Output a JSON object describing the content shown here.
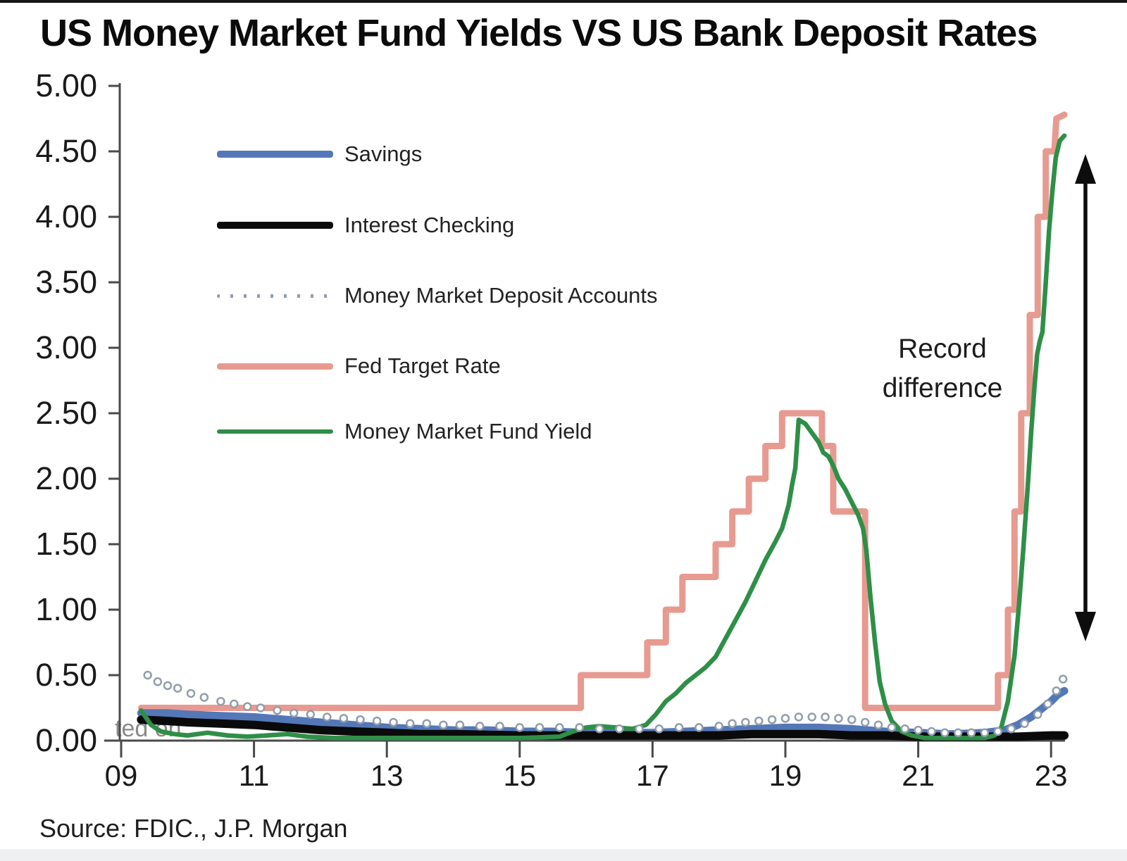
{
  "chart_data": {
    "type": "line",
    "title": "US Money Market Fund Yields VS US Bank Deposit Rates",
    "source": "Source: FDIC., J.P. Morgan",
    "watermark": "ted on",
    "annotation": {
      "line1": "Record",
      "line2": "difference"
    },
    "legend_position": "upper-left",
    "grid": false,
    "ylim": [
      0,
      5
    ],
    "xlim": [
      2009,
      2023.3
    ],
    "y_axis": {
      "ticks": [
        {
          "v": 5.0,
          "label": "5.00"
        },
        {
          "v": 4.5,
          "label": "4.50"
        },
        {
          "v": 4.0,
          "label": "4.00"
        },
        {
          "v": 3.5,
          "label": "3.50"
        },
        {
          "v": 3.0,
          "label": "3.00"
        },
        {
          "v": 2.5,
          "label": "2.50"
        },
        {
          "v": 2.0,
          "label": "2.00"
        },
        {
          "v": 1.5,
          "label": "1.50"
        },
        {
          "v": 1.0,
          "label": "1.00"
        },
        {
          "v": 0.5,
          "label": "0.50"
        },
        {
          "v": 0.0,
          "label": "0.00"
        }
      ]
    },
    "x_axis": {
      "ticks": [
        {
          "year": 2009,
          "label": "09"
        },
        {
          "year": 2011,
          "label": "11"
        },
        {
          "year": 2013,
          "label": "13"
        },
        {
          "year": 2015,
          "label": "15"
        },
        {
          "year": 2017,
          "label": "17"
        },
        {
          "year": 2019,
          "label": "19"
        },
        {
          "year": 2021,
          "label": "21"
        },
        {
          "year": 2023,
          "label": "23"
        }
      ]
    },
    "series": [
      {
        "name": "Savings",
        "color": "#5478b7",
        "style": "solid",
        "width": 11,
        "points": [
          [
            2009.3,
            0.21
          ],
          [
            2009.7,
            0.21
          ],
          [
            2010.0,
            0.2
          ],
          [
            2010.5,
            0.19
          ],
          [
            2011.0,
            0.18
          ],
          [
            2011.5,
            0.16
          ],
          [
            2012.0,
            0.14
          ],
          [
            2012.5,
            0.12
          ],
          [
            2013.0,
            0.1
          ],
          [
            2013.5,
            0.09
          ],
          [
            2014.0,
            0.08
          ],
          [
            2014.5,
            0.08
          ],
          [
            2015.0,
            0.07
          ],
          [
            2015.5,
            0.07
          ],
          [
            2016.0,
            0.06
          ],
          [
            2016.5,
            0.06
          ],
          [
            2017.0,
            0.06
          ],
          [
            2017.5,
            0.07
          ],
          [
            2018.0,
            0.08
          ],
          [
            2018.5,
            0.09
          ],
          [
            2019.0,
            0.1
          ],
          [
            2019.5,
            0.1
          ],
          [
            2020.0,
            0.09
          ],
          [
            2020.5,
            0.07
          ],
          [
            2021.0,
            0.06
          ],
          [
            2021.5,
            0.05
          ],
          [
            2022.0,
            0.06
          ],
          [
            2022.3,
            0.08
          ],
          [
            2022.5,
            0.12
          ],
          [
            2022.7,
            0.18
          ],
          [
            2022.85,
            0.24
          ],
          [
            2023.0,
            0.3
          ],
          [
            2023.1,
            0.35
          ],
          [
            2023.2,
            0.38
          ]
        ]
      },
      {
        "name": "Interest Checking",
        "color": "#0a0a0a",
        "style": "solid",
        "width": 12,
        "points": [
          [
            2009.3,
            0.16
          ],
          [
            2009.7,
            0.15
          ],
          [
            2010.0,
            0.14
          ],
          [
            2010.5,
            0.13
          ],
          [
            2011.0,
            0.12
          ],
          [
            2011.5,
            0.1
          ],
          [
            2012.0,
            0.08
          ],
          [
            2012.5,
            0.07
          ],
          [
            2013.0,
            0.06
          ],
          [
            2013.5,
            0.05
          ],
          [
            2014.0,
            0.05
          ],
          [
            2015.0,
            0.04
          ],
          [
            2016.0,
            0.04
          ],
          [
            2017.0,
            0.04
          ],
          [
            2018.0,
            0.04
          ],
          [
            2018.5,
            0.05
          ],
          [
            2019.0,
            0.05
          ],
          [
            2019.5,
            0.05
          ],
          [
            2020.0,
            0.04
          ],
          [
            2020.5,
            0.04
          ],
          [
            2021.0,
            0.03
          ],
          [
            2021.5,
            0.03
          ],
          [
            2022.0,
            0.03
          ],
          [
            2022.5,
            0.03
          ],
          [
            2023.0,
            0.04
          ],
          [
            2023.2,
            0.04
          ]
        ]
      },
      {
        "name": "Money Market Deposit Accounts",
        "color": "#919dab",
        "style": "dotted",
        "width": 5,
        "points": [
          [
            2009.4,
            0.5
          ],
          [
            2009.55,
            0.45
          ],
          [
            2009.7,
            0.42
          ],
          [
            2009.85,
            0.4
          ],
          [
            2010.05,
            0.36
          ],
          [
            2010.25,
            0.33
          ],
          [
            2010.5,
            0.3
          ],
          [
            2010.7,
            0.28
          ],
          [
            2010.9,
            0.26
          ],
          [
            2011.1,
            0.25
          ],
          [
            2011.35,
            0.23
          ],
          [
            2011.6,
            0.21
          ],
          [
            2011.85,
            0.2
          ],
          [
            2012.1,
            0.18
          ],
          [
            2012.35,
            0.17
          ],
          [
            2012.6,
            0.16
          ],
          [
            2012.85,
            0.15
          ],
          [
            2013.1,
            0.14
          ],
          [
            2013.35,
            0.13
          ],
          [
            2013.6,
            0.13
          ],
          [
            2013.85,
            0.12
          ],
          [
            2014.1,
            0.12
          ],
          [
            2014.4,
            0.11
          ],
          [
            2014.7,
            0.11
          ],
          [
            2015.0,
            0.1
          ],
          [
            2015.3,
            0.1
          ],
          [
            2015.6,
            0.1
          ],
          [
            2015.9,
            0.1
          ],
          [
            2016.2,
            0.09
          ],
          [
            2016.5,
            0.09
          ],
          [
            2016.8,
            0.09
          ],
          [
            2017.1,
            0.09
          ],
          [
            2017.4,
            0.1
          ],
          [
            2017.7,
            0.1
          ],
          [
            2018.0,
            0.11
          ],
          [
            2018.2,
            0.13
          ],
          [
            2018.4,
            0.14
          ],
          [
            2018.6,
            0.15
          ],
          [
            2018.8,
            0.16
          ],
          [
            2019.0,
            0.17
          ],
          [
            2019.2,
            0.18
          ],
          [
            2019.4,
            0.18
          ],
          [
            2019.6,
            0.18
          ],
          [
            2019.8,
            0.17
          ],
          [
            2020.0,
            0.16
          ],
          [
            2020.2,
            0.14
          ],
          [
            2020.4,
            0.12
          ],
          [
            2020.6,
            0.1
          ],
          [
            2020.8,
            0.09
          ],
          [
            2021.0,
            0.08
          ],
          [
            2021.2,
            0.07
          ],
          [
            2021.4,
            0.06
          ],
          [
            2021.6,
            0.06
          ],
          [
            2021.8,
            0.06
          ],
          [
            2022.0,
            0.06
          ],
          [
            2022.2,
            0.07
          ],
          [
            2022.4,
            0.09
          ],
          [
            2022.6,
            0.13
          ],
          [
            2022.8,
            0.2
          ],
          [
            2022.95,
            0.28
          ],
          [
            2023.08,
            0.38
          ],
          [
            2023.18,
            0.47
          ]
        ]
      },
      {
        "name": "Fed Target Rate",
        "color": "#e79a90",
        "style": "solid",
        "width": 9,
        "points": [
          [
            2009.3,
            0.25
          ],
          [
            2015.92,
            0.25
          ],
          [
            2015.92,
            0.5
          ],
          [
            2016.92,
            0.5
          ],
          [
            2016.92,
            0.75
          ],
          [
            2017.2,
            0.75
          ],
          [
            2017.2,
            1.0
          ],
          [
            2017.45,
            1.0
          ],
          [
            2017.45,
            1.25
          ],
          [
            2017.95,
            1.25
          ],
          [
            2017.95,
            1.5
          ],
          [
            2018.2,
            1.5
          ],
          [
            2018.2,
            1.75
          ],
          [
            2018.45,
            1.75
          ],
          [
            2018.45,
            2.0
          ],
          [
            2018.7,
            2.0
          ],
          [
            2018.7,
            2.25
          ],
          [
            2018.95,
            2.25
          ],
          [
            2018.95,
            2.5
          ],
          [
            2019.55,
            2.5
          ],
          [
            2019.55,
            2.25
          ],
          [
            2019.72,
            2.25
          ],
          [
            2019.72,
            1.75
          ],
          [
            2020.2,
            1.75
          ],
          [
            2020.2,
            0.25
          ],
          [
            2022.2,
            0.25
          ],
          [
            2022.2,
            0.5
          ],
          [
            2022.35,
            0.5
          ],
          [
            2022.35,
            1.0
          ],
          [
            2022.45,
            1.0
          ],
          [
            2022.45,
            1.75
          ],
          [
            2022.55,
            1.75
          ],
          [
            2022.55,
            2.5
          ],
          [
            2022.68,
            2.5
          ],
          [
            2022.68,
            3.25
          ],
          [
            2022.8,
            3.25
          ],
          [
            2022.8,
            4.0
          ],
          [
            2022.92,
            4.0
          ],
          [
            2022.92,
            4.5
          ],
          [
            2023.05,
            4.5
          ],
          [
            2023.08,
            4.75
          ],
          [
            2023.2,
            4.78
          ]
        ]
      },
      {
        "name": "Money Market Fund Yield",
        "color": "#2e8f47",
        "style": "solid",
        "width": 6.5,
        "points": [
          [
            2009.3,
            0.23
          ],
          [
            2009.45,
            0.12
          ],
          [
            2009.6,
            0.07
          ],
          [
            2009.8,
            0.05
          ],
          [
            2010.0,
            0.04
          ],
          [
            2010.3,
            0.06
          ],
          [
            2010.6,
            0.04
          ],
          [
            2010.9,
            0.03
          ],
          [
            2011.2,
            0.04
          ],
          [
            2011.5,
            0.05
          ],
          [
            2011.8,
            0.03
          ],
          [
            2012.2,
            0.02
          ],
          [
            2013.0,
            0.02
          ],
          [
            2014.0,
            0.02
          ],
          [
            2015.0,
            0.02
          ],
          [
            2015.6,
            0.03
          ],
          [
            2015.8,
            0.07
          ],
          [
            2016.0,
            0.1
          ],
          [
            2016.2,
            0.11
          ],
          [
            2016.45,
            0.1
          ],
          [
            2016.7,
            0.09
          ],
          [
            2016.9,
            0.12
          ],
          [
            2017.05,
            0.2
          ],
          [
            2017.2,
            0.3
          ],
          [
            2017.35,
            0.36
          ],
          [
            2017.5,
            0.44
          ],
          [
            2017.65,
            0.5
          ],
          [
            2017.8,
            0.56
          ],
          [
            2017.95,
            0.64
          ],
          [
            2018.1,
            0.78
          ],
          [
            2018.25,
            0.92
          ],
          [
            2018.4,
            1.06
          ],
          [
            2018.55,
            1.22
          ],
          [
            2018.7,
            1.38
          ],
          [
            2018.85,
            1.52
          ],
          [
            2018.95,
            1.62
          ],
          [
            2019.05,
            1.8
          ],
          [
            2019.1,
            1.95
          ],
          [
            2019.15,
            2.08
          ],
          [
            2019.2,
            2.45
          ],
          [
            2019.3,
            2.42
          ],
          [
            2019.4,
            2.35
          ],
          [
            2019.5,
            2.28
          ],
          [
            2019.57,
            2.2
          ],
          [
            2019.65,
            2.17
          ],
          [
            2019.72,
            2.1
          ],
          [
            2019.8,
            2.0
          ],
          [
            2019.9,
            1.92
          ],
          [
            2020.0,
            1.82
          ],
          [
            2020.1,
            1.72
          ],
          [
            2020.17,
            1.62
          ],
          [
            2020.22,
            1.45
          ],
          [
            2020.28,
            1.1
          ],
          [
            2020.35,
            0.75
          ],
          [
            2020.42,
            0.45
          ],
          [
            2020.5,
            0.28
          ],
          [
            2020.6,
            0.15
          ],
          [
            2020.75,
            0.07
          ],
          [
            2020.9,
            0.04
          ],
          [
            2021.1,
            0.02
          ],
          [
            2021.5,
            0.02
          ],
          [
            2022.0,
            0.02
          ],
          [
            2022.15,
            0.04
          ],
          [
            2022.25,
            0.1
          ],
          [
            2022.35,
            0.3
          ],
          [
            2022.45,
            0.65
          ],
          [
            2022.52,
            1.05
          ],
          [
            2022.58,
            1.45
          ],
          [
            2022.65,
            1.95
          ],
          [
            2022.7,
            2.35
          ],
          [
            2022.75,
            2.7
          ],
          [
            2022.79,
            2.95
          ],
          [
            2022.83,
            3.05
          ],
          [
            2022.87,
            3.12
          ],
          [
            2022.92,
            3.5
          ],
          [
            2022.97,
            3.9
          ],
          [
            2023.02,
            4.2
          ],
          [
            2023.07,
            4.45
          ],
          [
            2023.13,
            4.58
          ],
          [
            2023.2,
            4.62
          ]
        ]
      }
    ]
  }
}
